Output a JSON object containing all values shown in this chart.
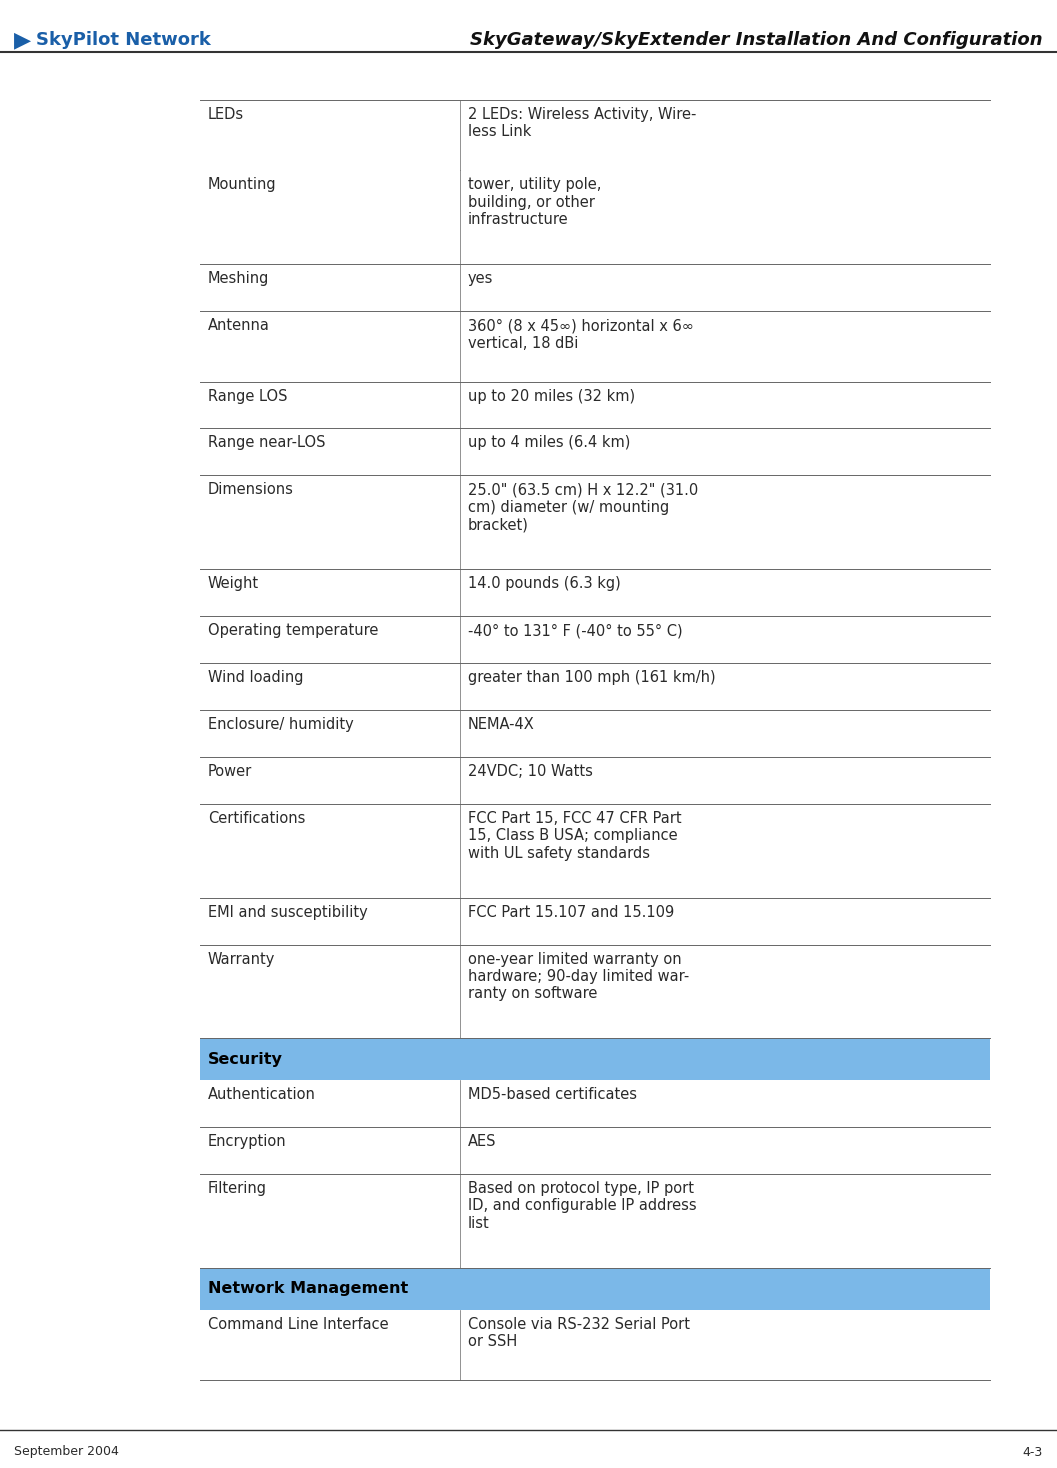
{
  "page_title": "SkyGateway/SkyExtender Installation And Configuration",
  "footer_left": "September 2004",
  "footer_right": "4-3",
  "rows": [
    {
      "label": "LEDs",
      "value": "2 LEDs: Wireless Activity, Wire-\nless Link",
      "header": false,
      "top_line": true,
      "group_start": true
    },
    {
      "label": "Mounting",
      "value": "tower, utility pole,\nbuilding, or other\ninfrastructure",
      "header": false,
      "top_line": false,
      "group_start": false
    },
    {
      "label": "Meshing",
      "value": "yes",
      "header": false,
      "top_line": true,
      "group_start": false
    },
    {
      "label": "Antenna",
      "value": "360° (8 x 45∞) horizontal x 6∞\nvertical, 18 dBi",
      "header": false,
      "top_line": true,
      "group_start": false
    },
    {
      "label": "Range LOS",
      "value": "up to 20 miles (32 km)",
      "header": false,
      "top_line": true,
      "group_start": false
    },
    {
      "label": "Range near-LOS",
      "value": "up to 4 miles (6.4 km)",
      "header": false,
      "top_line": true,
      "group_start": false
    },
    {
      "label": "Dimensions",
      "value": "25.0\" (63.5 cm) H x 12.2\" (31.0\ncm) diameter (w/ mounting\nbracket)",
      "header": false,
      "top_line": true,
      "group_start": false
    },
    {
      "label": "Weight",
      "value": "14.0 pounds (6.3 kg)",
      "header": false,
      "top_line": true,
      "group_start": false
    },
    {
      "label": "Operating temperature",
      "value": "-40° to 131° F (-40° to 55° C)",
      "header": false,
      "top_line": true,
      "group_start": false
    },
    {
      "label": "Wind loading",
      "value": "greater than 100 mph (161 km/h)",
      "header": false,
      "top_line": true,
      "group_start": false
    },
    {
      "label": "Enclosure/ humidity",
      "value": "NEMA-4X",
      "header": false,
      "top_line": true,
      "group_start": false
    },
    {
      "label": "Power",
      "value": "24VDC; 10 Watts",
      "header": false,
      "top_line": true,
      "group_start": false
    },
    {
      "label": "Certifications",
      "value": "FCC Part 15, FCC 47 CFR Part\n15, Class B USA; compliance\nwith UL safety standards",
      "header": false,
      "top_line": true,
      "group_start": false
    },
    {
      "label": "EMI and susceptibility",
      "value": "FCC Part 15.107 and 15.109",
      "header": false,
      "top_line": true,
      "group_start": false
    },
    {
      "label": "Warranty",
      "value": "one-year limited warranty on\nhardware; 90-day limited war-\nranty on software",
      "header": false,
      "top_line": true,
      "group_start": false
    },
    {
      "label": "Security",
      "value": "",
      "header": true,
      "top_line": true,
      "group_start": true
    },
    {
      "label": "Authentication",
      "value": "MD5-based certificates",
      "header": false,
      "top_line": false,
      "group_start": false
    },
    {
      "label": "Encryption",
      "value": "AES",
      "header": false,
      "top_line": true,
      "group_start": false
    },
    {
      "label": "Filtering",
      "value": "Based on protocol type, IP port\nID, and configurable IP address\nlist",
      "header": false,
      "top_line": true,
      "group_start": false
    },
    {
      "label": "Network Management",
      "value": "",
      "header": true,
      "top_line": true,
      "group_start": true
    },
    {
      "label": "Command Line Interface",
      "value": "Console via RS-232 Serial Port\nor SSH",
      "header": false,
      "top_line": false,
      "group_start": false
    }
  ],
  "header_bg_color": "#7bb8e8",
  "header_text_color": "#000000",
  "text_color": "#2a2a2a",
  "line_color": "#666666",
  "title_color": "#111111",
  "logo_color": "#1a5fa8",
  "bg_color": "#ffffff",
  "font_size": 10.5,
  "header_font_size": 11.5,
  "title_font_size": 13,
  "footer_font_size": 9
}
